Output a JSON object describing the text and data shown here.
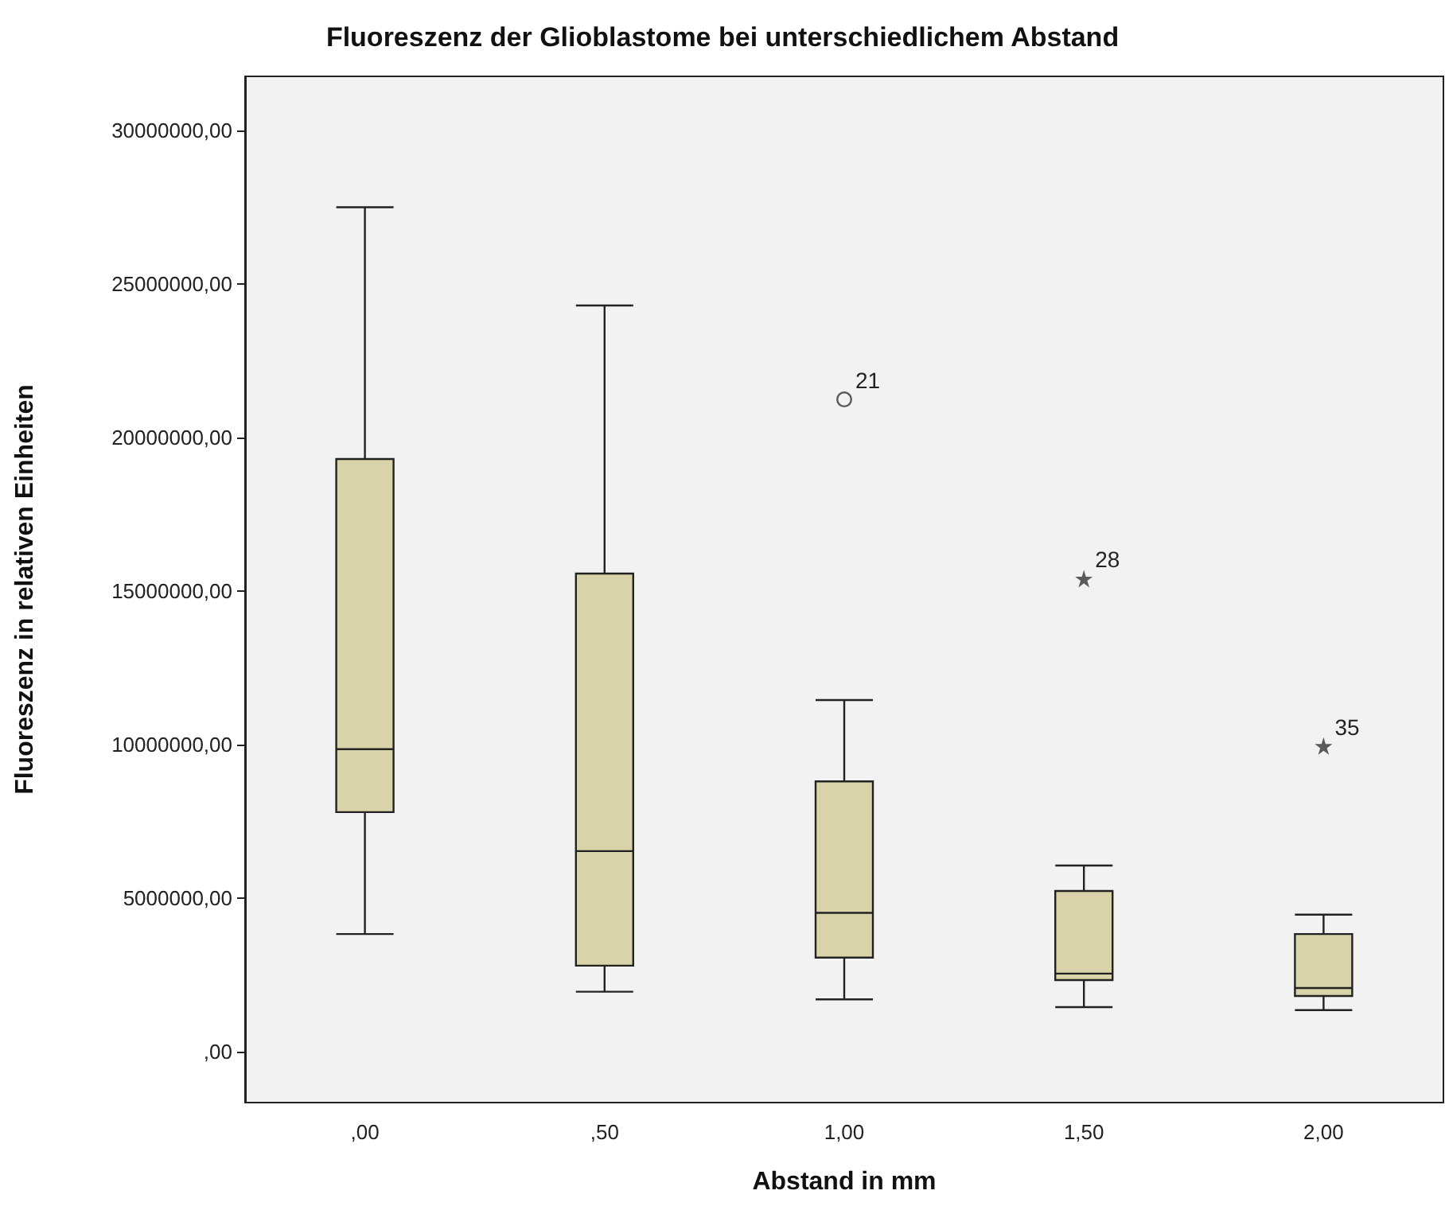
{
  "chart_data": {
    "type": "box",
    "title": "Fluoreszenz der Glioblastome bei unterschiedlichem Abstand",
    "xlabel": "Abstand in mm",
    "ylabel": "Fluoreszenz in relativen Einheiten",
    "categories": [
      ",00",
      ",50",
      "1,00",
      "1,50",
      "2,00"
    ],
    "series": [
      {
        "type": "box",
        "color": "#d8d3a8",
        "boxes": [
          {
            "low": 3830000,
            "q1": 7800000,
            "median": 9850000,
            "q3": 19300000,
            "high": 27500000
          },
          {
            "low": 1950000,
            "q1": 2800000,
            "median": 6530000,
            "q3": 15570000,
            "high": 24300000
          },
          {
            "low": 1700000,
            "q1": 3060000,
            "median": 4520000,
            "q3": 8800000,
            "high": 11450000
          },
          {
            "low": 1450000,
            "q1": 2330000,
            "median": 2540000,
            "q3": 5230000,
            "high": 6060000
          },
          {
            "low": 1350000,
            "q1": 1810000,
            "median": 2070000,
            "q3": 3830000,
            "high": 4460000
          }
        ]
      },
      {
        "type": "scatter",
        "marker": "circle",
        "color": "#333333",
        "x": [
          "1,00"
        ],
        "values": [
          21240000
        ]
      },
      {
        "type": "scatter",
        "marker": "star",
        "color": "#333333",
        "x": [
          "1,50",
          "2,00"
        ],
        "values": [
          15400000,
          9950000
        ]
      }
    ],
    "ylim": [
      -1660000,
      31760000
    ],
    "yticks": [
      {
        "value": 0,
        "label": ",00"
      },
      {
        "value": 5000000,
        "label": "5000000,00"
      },
      {
        "value": 10000000,
        "label": "10000000,00"
      },
      {
        "value": 15000000,
        "label": "15000000,00"
      },
      {
        "value": 20000000,
        "label": "20000000,00"
      },
      {
        "value": 25000000,
        "label": "25000000,00"
      },
      {
        "value": 30000000,
        "label": "30000000,00"
      }
    ],
    "grid": false,
    "annotations": [
      {
        "text": "21",
        "x": "1,00",
        "y": 21240000
      },
      {
        "text": "28",
        "x": "1,50",
        "y": 15400000
      },
      {
        "text": "35",
        "x": "2,00",
        "y": 9950000
      }
    ]
  }
}
